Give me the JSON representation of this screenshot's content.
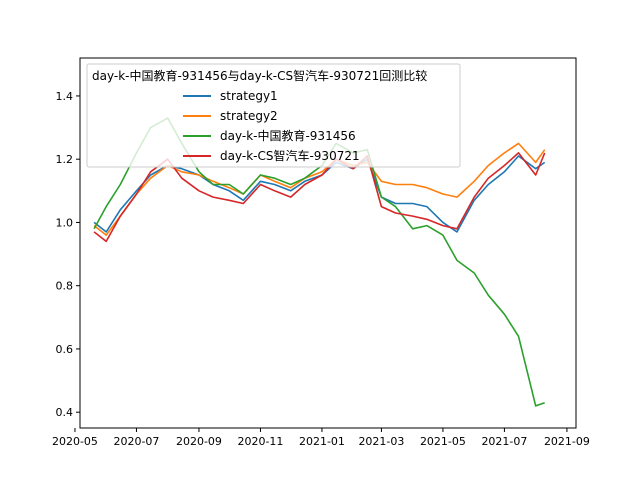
{
  "chart_data": {
    "type": "line",
    "legend_title": "day-k-中国教育-931456与day-k-CS智汽车-930721回测比较",
    "legend_placement": "upper-left",
    "grid": false,
    "xlabel": "",
    "ylabel": "",
    "xlim": [
      "2020-05-06",
      "2021-09-10"
    ],
    "ylim": [
      0.35,
      1.52
    ],
    "x_ticks": [
      "2020-05",
      "2020-07",
      "2020-09",
      "2020-11",
      "2021-01",
      "2021-03",
      "2021-05",
      "2021-07",
      "2021-09"
    ],
    "y_ticks": [
      "0.4",
      "0.6",
      "0.8",
      "1.0",
      "1.2",
      "1.4"
    ],
    "x": [
      "2020-05-20",
      "2020-06-01",
      "2020-06-15",
      "2020-07-01",
      "2020-07-15",
      "2020-08-01",
      "2020-08-15",
      "2020-09-01",
      "2020-09-15",
      "2020-10-01",
      "2020-10-15",
      "2020-11-01",
      "2020-11-15",
      "2020-12-01",
      "2020-12-15",
      "2021-01-01",
      "2021-01-15",
      "2021-02-01",
      "2021-02-15",
      "2021-03-01",
      "2021-03-15",
      "2021-04-01",
      "2021-04-15",
      "2021-05-01",
      "2021-05-15",
      "2021-06-01",
      "2021-06-15",
      "2021-07-01",
      "2021-07-15",
      "2021-08-01",
      "2021-08-10"
    ],
    "series": [
      {
        "name": "strategy1",
        "color": "#1f77b4",
        "values": [
          1.0,
          0.97,
          1.04,
          1.1,
          1.15,
          1.18,
          1.17,
          1.15,
          1.12,
          1.1,
          1.07,
          1.13,
          1.12,
          1.1,
          1.13,
          1.15,
          1.19,
          1.17,
          1.2,
          1.08,
          1.06,
          1.06,
          1.05,
          1.0,
          0.97,
          1.07,
          1.12,
          1.16,
          1.21,
          1.17,
          1.19
        ]
      },
      {
        "name": "strategy2",
        "color": "#ff7f0e",
        "values": [
          0.99,
          0.96,
          1.02,
          1.09,
          1.14,
          1.18,
          1.16,
          1.15,
          1.13,
          1.11,
          1.09,
          1.15,
          1.13,
          1.11,
          1.14,
          1.16,
          1.2,
          1.18,
          1.19,
          1.13,
          1.12,
          1.12,
          1.11,
          1.09,
          1.08,
          1.13,
          1.18,
          1.22,
          1.25,
          1.19,
          1.23
        ]
      },
      {
        "name": "day-k-中国教育-931456",
        "color": "#2ca02c",
        "values": [
          0.98,
          1.05,
          1.12,
          1.22,
          1.3,
          1.33,
          1.25,
          1.16,
          1.12,
          1.12,
          1.09,
          1.15,
          1.14,
          1.12,
          1.14,
          1.18,
          1.25,
          1.22,
          1.23,
          1.08,
          1.05,
          0.98,
          0.99,
          0.96,
          0.88,
          0.84,
          0.77,
          0.71,
          0.64,
          0.42,
          0.43
        ]
      },
      {
        "name": "day-k-CS智汽车-930721",
        "color": "#d62728",
        "values": [
          0.97,
          0.94,
          1.02,
          1.09,
          1.16,
          1.2,
          1.14,
          1.1,
          1.08,
          1.07,
          1.06,
          1.12,
          1.1,
          1.08,
          1.12,
          1.15,
          1.2,
          1.17,
          1.21,
          1.05,
          1.03,
          1.02,
          1.01,
          0.99,
          0.98,
          1.08,
          1.14,
          1.18,
          1.22,
          1.15,
          1.22
        ]
      }
    ]
  }
}
